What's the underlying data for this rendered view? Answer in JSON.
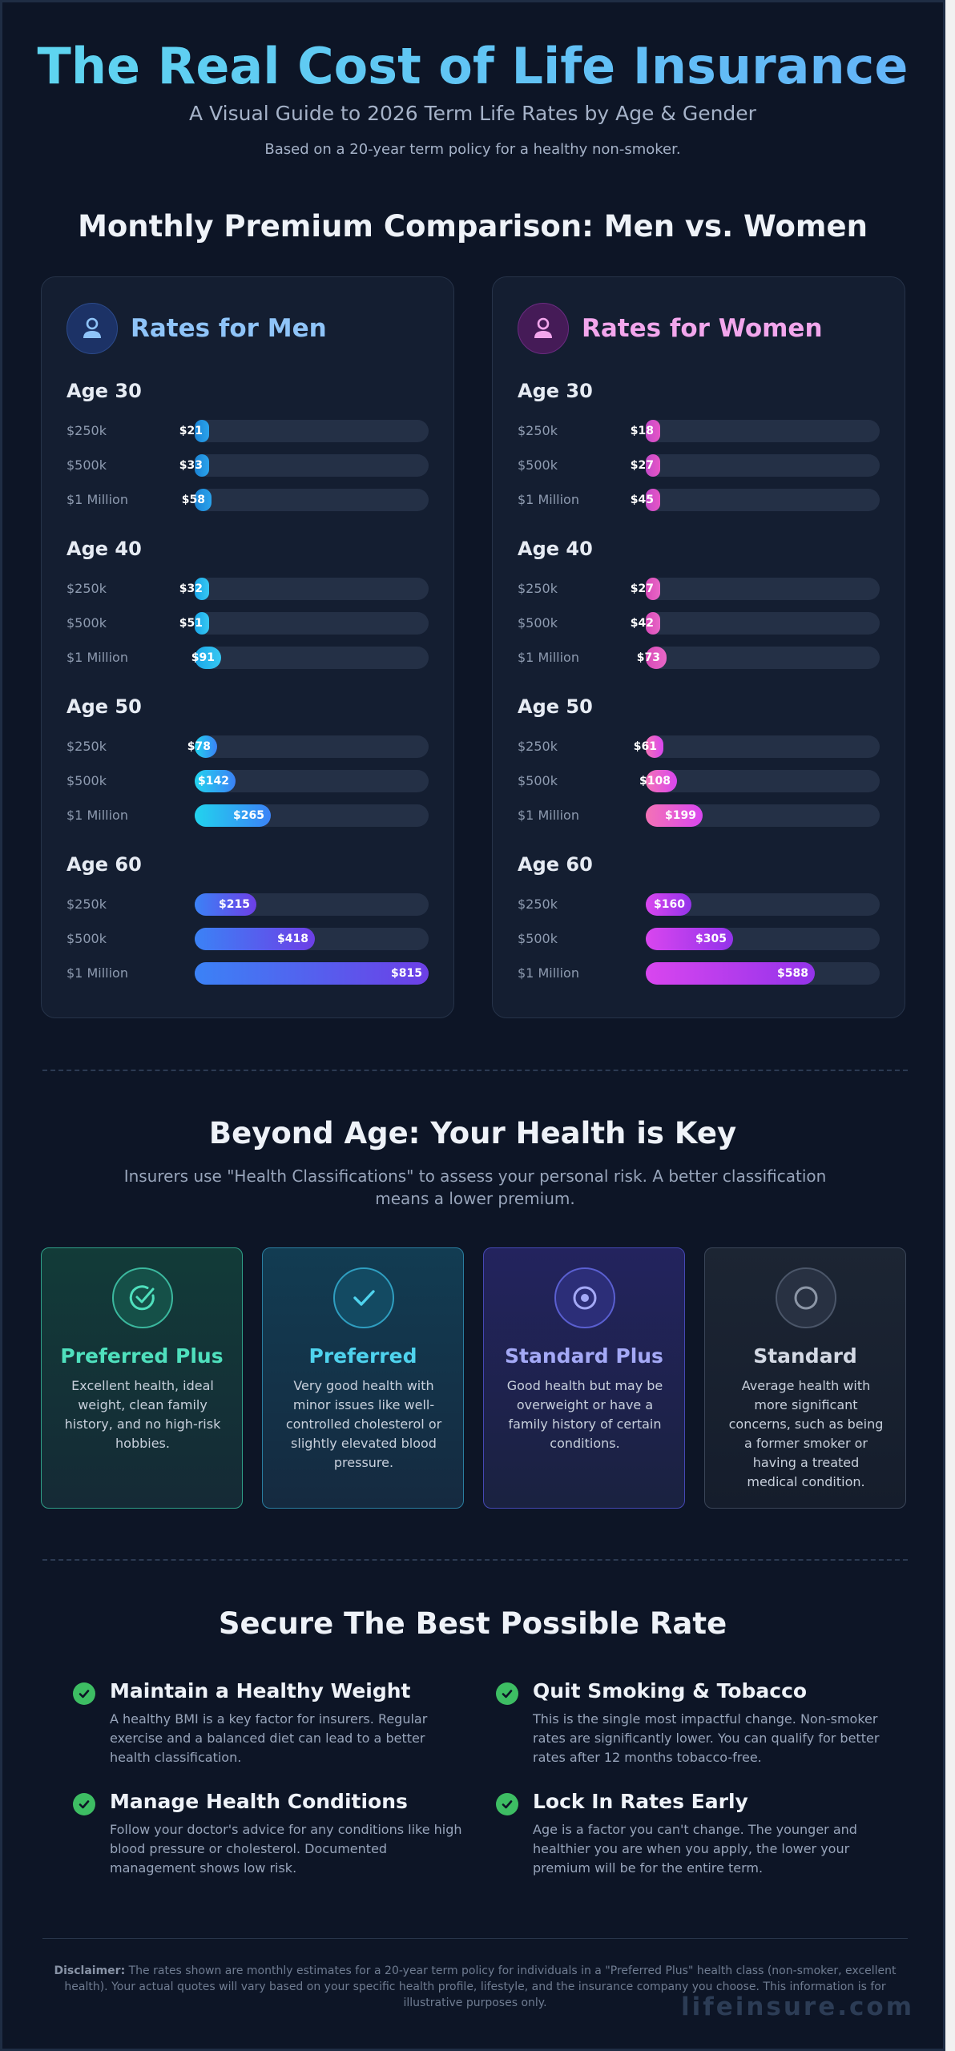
{
  "header": {
    "title": "The Real Cost of Life Insurance",
    "subtitle": "A Visual Guide to 2026 Term Life Rates by Age & Gender",
    "note": "Based on a 20-year term policy for a healthy non-smoker."
  },
  "comparison": {
    "title": "Monthly Premium Comparison: Men vs. Women",
    "max_value": 815,
    "men": {
      "title": "Rates for Men",
      "icon": "user-icon",
      "color": "#8fc4f8",
      "groups": [
        {
          "age": "Age 30",
          "rates": [
            {
              "label": "$250k",
              "value": 21,
              "text": "$21"
            },
            {
              "label": "$500k",
              "value": 33,
              "text": "$33"
            },
            {
              "label": "$1 Million",
              "value": 58,
              "text": "$58"
            }
          ]
        },
        {
          "age": "Age 40",
          "rates": [
            {
              "label": "$250k",
              "value": 32,
              "text": "$32"
            },
            {
              "label": "$500k",
              "value": 51,
              "text": "$51"
            },
            {
              "label": "$1 Million",
              "value": 91,
              "text": "$91"
            }
          ]
        },
        {
          "age": "Age 50",
          "rates": [
            {
              "label": "$250k",
              "value": 78,
              "text": "$78"
            },
            {
              "label": "$500k",
              "value": 142,
              "text": "$142"
            },
            {
              "label": "$1 Million",
              "value": 265,
              "text": "$265"
            }
          ]
        },
        {
          "age": "Age 60",
          "rates": [
            {
              "label": "$250k",
              "value": 215,
              "text": "$215"
            },
            {
              "label": "$500k",
              "value": 418,
              "text": "$418"
            },
            {
              "label": "$1 Million",
              "value": 815,
              "text": "$815"
            }
          ]
        }
      ]
    },
    "women": {
      "title": "Rates for Women",
      "icon": "female-user-icon",
      "color": "#f2a6ec",
      "groups": [
        {
          "age": "Age 30",
          "rates": [
            {
              "label": "$250k",
              "value": 18,
              "text": "$18"
            },
            {
              "label": "$500k",
              "value": 27,
              "text": "$27"
            },
            {
              "label": "$1 Million",
              "value": 45,
              "text": "$45"
            }
          ]
        },
        {
          "age": "Age 40",
          "rates": [
            {
              "label": "$250k",
              "value": 27,
              "text": "$27"
            },
            {
              "label": "$500k",
              "value": 42,
              "text": "$42"
            },
            {
              "label": "$1 Million",
              "value": 73,
              "text": "$73"
            }
          ]
        },
        {
          "age": "Age 50",
          "rates": [
            {
              "label": "$250k",
              "value": 61,
              "text": "$61"
            },
            {
              "label": "$500k",
              "value": 108,
              "text": "$108"
            },
            {
              "label": "$1 Million",
              "value": 199,
              "text": "$199"
            }
          ]
        },
        {
          "age": "Age 60",
          "rates": [
            {
              "label": "$250k",
              "value": 160,
              "text": "$160"
            },
            {
              "label": "$500k",
              "value": 305,
              "text": "$305"
            },
            {
              "label": "$1 Million",
              "value": 588,
              "text": "$588"
            }
          ]
        }
      ]
    }
  },
  "health": {
    "title": "Beyond Age: Your Health is Key",
    "description": "Insurers use \"Health Classifications\" to assess your personal risk. A better classification means a lower premium.",
    "classes": [
      {
        "title": "Preferred Plus",
        "icon": "check-circle-icon",
        "color": "#4fe0bd",
        "text": "Excellent health, ideal weight, clean family history, and no high-risk hobbies."
      },
      {
        "title": "Preferred",
        "icon": "check-icon",
        "color": "#4fd3ee",
        "text": "Very good health with minor issues like well-controlled cholesterol or slightly elevated blood pressure."
      },
      {
        "title": "Standard Plus",
        "icon": "dot-circle-icon",
        "color": "#a4a9f6",
        "text": "Good health but may be overweight or have a family history of certain conditions."
      },
      {
        "title": "Standard",
        "icon": "circle-icon",
        "color": "#d3d9e4",
        "text": "Average health with more significant concerns, such as being a former smoker or having a treated medical condition."
      }
    ]
  },
  "tips": {
    "title": "Secure The Best Possible Rate",
    "items": [
      {
        "title": "Maintain a Healthy Weight",
        "icon": "check-badge-icon",
        "text": "A healthy BMI is a key factor for insurers. Regular exercise and a balanced diet can lead to a better health classification."
      },
      {
        "title": "Quit Smoking & Tobacco",
        "icon": "check-badge-icon",
        "text": "This is the single most impactful change. Non-smoker rates are significantly lower. You can qualify for better rates after 12 months tobacco-free."
      },
      {
        "title": "Manage Health Conditions",
        "icon": "check-badge-icon",
        "text": "Follow your doctor's advice for any conditions like high blood pressure or cholesterol. Documented management shows low risk."
      },
      {
        "title": "Lock In Rates Early",
        "icon": "check-badge-icon",
        "text": "Age is a factor you can't change. The younger and healthier you are when you apply, the lower your premium will be for the entire term."
      }
    ]
  },
  "footer": {
    "disclaimer_label": "Disclaimer:",
    "disclaimer": "The rates shown are monthly estimates for a 20-year term policy for individuals in a \"Preferred Plus\" health class (non-smoker, excellent health). Your actual quotes will vary based on your specific health profile, lifestyle, and the insurance company you choose. This information is for illustrative purposes only.",
    "watermark": "lifeinsure.com"
  }
}
